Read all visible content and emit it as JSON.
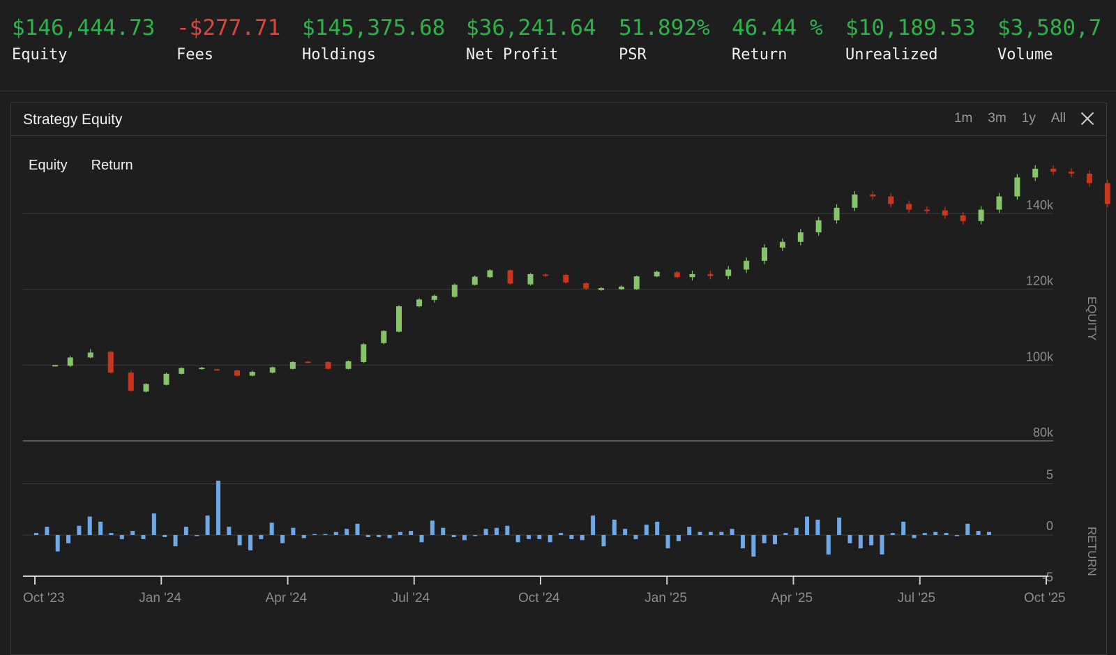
{
  "stats": [
    {
      "value": "$146,444.73",
      "label": "Equity",
      "negative": false
    },
    {
      "value": "-$277.71",
      "label": "Fees",
      "negative": true
    },
    {
      "value": "$145,375.68",
      "label": "Holdings",
      "negative": false
    },
    {
      "value": "$36,241.64",
      "label": "Net Profit",
      "negative": false
    },
    {
      "value": "51.892%",
      "label": "PSR",
      "negative": false
    },
    {
      "value": "46.44 %",
      "label": "Return",
      "negative": false
    },
    {
      "value": "$10,189.53",
      "label": "Unrealized",
      "negative": false
    },
    {
      "value": "$3,580,7",
      "label": "Volume",
      "negative": false
    }
  ],
  "panel": {
    "title": "Strategy Equity",
    "ranges": [
      "1m",
      "3m",
      "1y",
      "All"
    ],
    "legend": [
      "Equity",
      "Return"
    ]
  },
  "colors": {
    "up": "#86c46a",
    "down": "#c8361c",
    "bar": "#6ea8e8",
    "positive_text": "#2eb34a",
    "negative_text": "#e0443a"
  },
  "chart_data": [
    {
      "type": "candlestick",
      "ylabel": "EQUITY",
      "y_ticks": [
        "140k",
        "120k",
        "100k",
        "80k"
      ],
      "ylim": [
        80000,
        155000
      ],
      "grid": true,
      "candles": [
        {
          "t": 2023.79,
          "o": 100000,
          "c": 100000,
          "h": 100000,
          "l": 100000
        },
        {
          "t": 2023.82,
          "o": 99800,
          "c": 102000,
          "h": 102400,
          "l": 99500
        },
        {
          "t": 2023.86,
          "o": 102000,
          "c": 103300,
          "h": 104200,
          "l": 101800
        },
        {
          "t": 2023.9,
          "o": 103500,
          "c": 98000,
          "h": 103700,
          "l": 97800
        },
        {
          "t": 2023.94,
          "o": 98000,
          "c": 93200,
          "h": 98500,
          "l": 93000
        },
        {
          "t": 2023.97,
          "o": 93000,
          "c": 95000,
          "h": 95200,
          "l": 92800
        },
        {
          "t": 2024.01,
          "o": 94800,
          "c": 97700,
          "h": 98000,
          "l": 94600
        },
        {
          "t": 2024.04,
          "o": 97700,
          "c": 99200,
          "h": 99400,
          "l": 97500
        },
        {
          "t": 2024.08,
          "o": 99000,
          "c": 99300,
          "h": 99500,
          "l": 98800
        },
        {
          "t": 2024.11,
          "o": 98900,
          "c": 98700,
          "h": 99000,
          "l": 98500
        },
        {
          "t": 2024.15,
          "o": 98600,
          "c": 97200,
          "h": 98800,
          "l": 97000
        },
        {
          "t": 2024.18,
          "o": 97200,
          "c": 98200,
          "h": 98500,
          "l": 97000
        },
        {
          "t": 2024.22,
          "o": 98000,
          "c": 99400,
          "h": 99600,
          "l": 97800
        },
        {
          "t": 2024.26,
          "o": 99000,
          "c": 100800,
          "h": 101000,
          "l": 98800
        },
        {
          "t": 2024.29,
          "o": 100900,
          "c": 100700,
          "h": 101100,
          "l": 100500
        },
        {
          "t": 2024.33,
          "o": 100800,
          "c": 99000,
          "h": 101000,
          "l": 98800
        },
        {
          "t": 2024.37,
          "o": 99000,
          "c": 101000,
          "h": 101200,
          "l": 98800
        },
        {
          "t": 2024.4,
          "o": 100800,
          "c": 105500,
          "h": 105800,
          "l": 100500
        },
        {
          "t": 2024.44,
          "o": 105800,
          "c": 109000,
          "h": 109200,
          "l": 105500
        },
        {
          "t": 2024.47,
          "o": 108800,
          "c": 115500,
          "h": 115800,
          "l": 108600
        },
        {
          "t": 2024.51,
          "o": 115500,
          "c": 117300,
          "h": 117600,
          "l": 115200
        },
        {
          "t": 2024.54,
          "o": 117200,
          "c": 118300,
          "h": 118600,
          "l": 116500
        },
        {
          "t": 2024.58,
          "o": 118000,
          "c": 121200,
          "h": 121500,
          "l": 117800
        },
        {
          "t": 2024.62,
          "o": 121200,
          "c": 123300,
          "h": 123600,
          "l": 121000
        },
        {
          "t": 2024.65,
          "o": 123200,
          "c": 125000,
          "h": 125300,
          "l": 123000
        },
        {
          "t": 2024.69,
          "o": 125000,
          "c": 121500,
          "h": 125200,
          "l": 121200
        },
        {
          "t": 2024.73,
          "o": 121300,
          "c": 124000,
          "h": 124300,
          "l": 121000
        },
        {
          "t": 2024.76,
          "o": 123900,
          "c": 123600,
          "h": 124200,
          "l": 123300
        },
        {
          "t": 2024.8,
          "o": 123800,
          "c": 121800,
          "h": 124000,
          "l": 121500
        },
        {
          "t": 2024.84,
          "o": 121600,
          "c": 120200,
          "h": 121800,
          "l": 119800
        },
        {
          "t": 2024.87,
          "o": 119800,
          "c": 120300,
          "h": 120600,
          "l": 119600
        },
        {
          "t": 2024.91,
          "o": 120000,
          "c": 120700,
          "h": 121000,
          "l": 119800
        },
        {
          "t": 2024.94,
          "o": 120000,
          "c": 123400,
          "h": 123600,
          "l": 119800
        },
        {
          "t": 2024.98,
          "o": 123400,
          "c": 124600,
          "h": 124900,
          "l": 123200
        },
        {
          "t": 2025.02,
          "o": 124500,
          "c": 123200,
          "h": 124800,
          "l": 123000
        }
      ]
    },
    {
      "type": "bar",
      "ylabel": "RETURN",
      "y_ticks": [
        "5",
        "0",
        "-5"
      ],
      "ylim": [
        -5,
        5
      ]
    }
  ],
  "x_axis": {
    "labels": [
      "Oct '23",
      "Jan '24",
      "Apr '24",
      "Jul '24",
      "Oct '24",
      "Jan '25",
      "Apr '25",
      "Jul '25",
      "Oct '25"
    ]
  }
}
